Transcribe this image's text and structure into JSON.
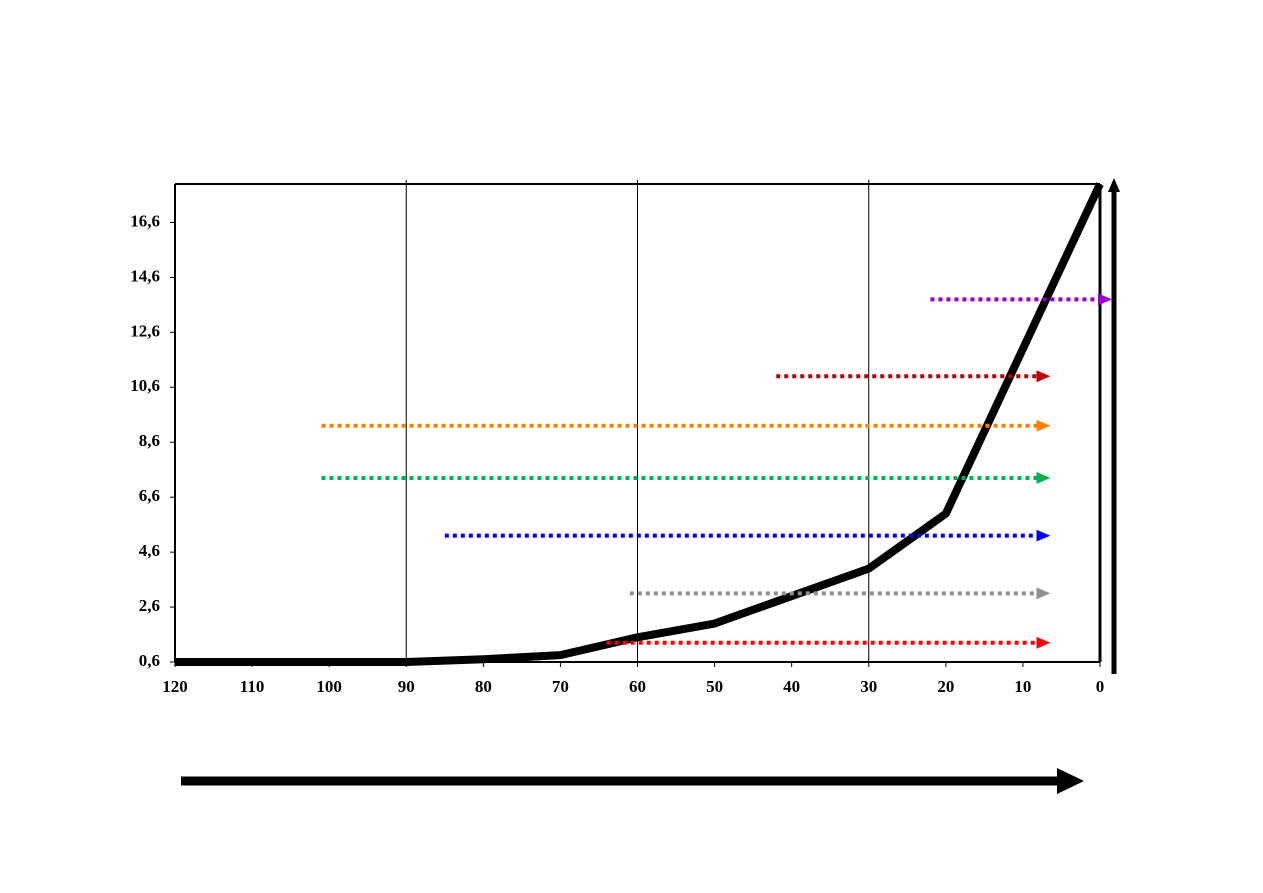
{
  "chart_data": {
    "type": "line",
    "xlim": [
      120,
      0
    ],
    "ylim": [
      0.6,
      18
    ],
    "xticks": [
      120,
      110,
      100,
      90,
      80,
      70,
      60,
      50,
      40,
      30,
      20,
      10,
      0
    ],
    "yticks": [
      {
        "value": 0.6,
        "label": "0,6"
      },
      {
        "value": 2.6,
        "label": "2,6"
      },
      {
        "value": 4.6,
        "label": "4,6"
      },
      {
        "value": 6.6,
        "label": "6,6"
      },
      {
        "value": 8.6,
        "label": "8,6"
      },
      {
        "value": 10.6,
        "label": "10,6"
      },
      {
        "value": 12.6,
        "label": "12,6"
      },
      {
        "value": 14.6,
        "label": "14,6"
      },
      {
        "value": 16.6,
        "label": "16,6"
      }
    ],
    "vlines": [
      90,
      60,
      30
    ],
    "series": [
      {
        "color": "#000000",
        "x": [
          120,
          90,
          80,
          70,
          60,
          50,
          40,
          30,
          20,
          0
        ],
        "values": [
          0.6,
          0.6,
          0.7,
          0.85,
          1.5,
          2,
          3,
          4,
          6,
          18
        ]
      },
      {
        "color": "#9900cc",
        "x": [
          22,
          0
        ],
        "values": [
          13.8,
          13.8
        ]
      },
      {
        "color": "#c00000",
        "x": [
          42,
          8
        ],
        "values": [
          11,
          11
        ]
      },
      {
        "color": "#ff8000",
        "x": [
          101,
          8
        ],
        "values": [
          9.2,
          9.2
        ]
      },
      {
        "color": "#00b050",
        "x": [
          101,
          8
        ],
        "values": [
          7.3,
          7.3
        ]
      },
      {
        "color": "#0000ff",
        "x": [
          85,
          8
        ],
        "values": [
          5.2,
          5.2
        ]
      },
      {
        "color": "#909090",
        "x": [
          61,
          8
        ],
        "values": [
          3.1,
          3.1
        ]
      },
      {
        "color": "#ff0000",
        "x": [
          64,
          8
        ],
        "values": [
          1.3,
          1.3
        ]
      }
    ]
  }
}
